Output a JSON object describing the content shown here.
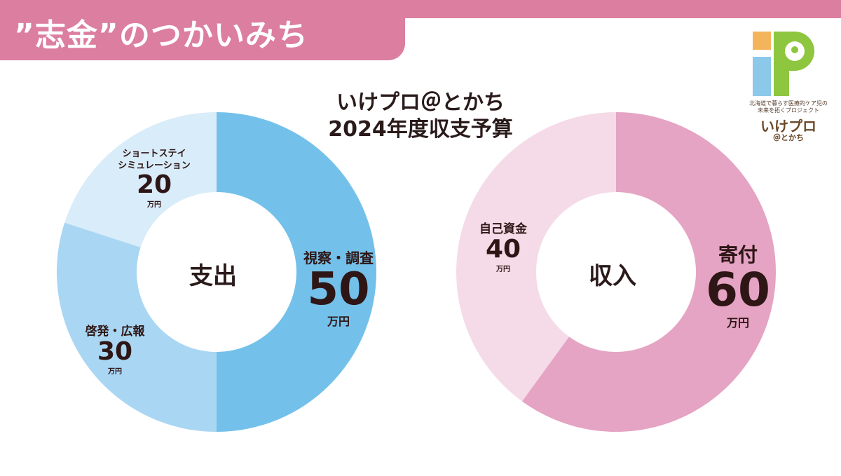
{
  "header": {
    "title": "”志金”のつかいみち"
  },
  "title": {
    "line1": "いけプロ＠とかち",
    "line2": "2024年度収支予算"
  },
  "colors": {
    "header_pink": "#dc7ea0",
    "expense_main": "#73c1ea",
    "expense_mid": "#a9d6f3",
    "expense_light": "#d9ecf9",
    "income_main": "#e5a4c3",
    "income_light": "#f5dbe7"
  },
  "chart_data": [
    {
      "type": "pie",
      "center_label": "支出",
      "unit": "万円",
      "categories": [
        "視察・調査",
        "啓発・広報",
        "ショートステイ\nシミュレーション"
      ],
      "values": [
        50,
        30,
        20
      ],
      "label_names": [
        "視察・調査",
        "啓発・広報",
        "ショートステイ"
      ],
      "label_names_line2": [
        "",
        "",
        "シミュレーション"
      ],
      "value_text": [
        "50",
        "30",
        "20"
      ]
    },
    {
      "type": "pie",
      "center_label": "収入",
      "unit": "万円",
      "categories": [
        "寄付",
        "自己資金"
      ],
      "values": [
        60,
        40
      ],
      "label_names": [
        "寄付",
        "自己資金"
      ],
      "value_text": [
        "60",
        "40"
      ]
    }
  ],
  "logo": {
    "tagline1": "北海道で暮らす医療的ケア児の",
    "tagline2": "未来を拓くプロジェクト",
    "brand": "いけプロ",
    "sub": "＠とかち",
    "icons": [
      "sun-icon",
      "cloud-icon",
      "child-icon"
    ]
  }
}
